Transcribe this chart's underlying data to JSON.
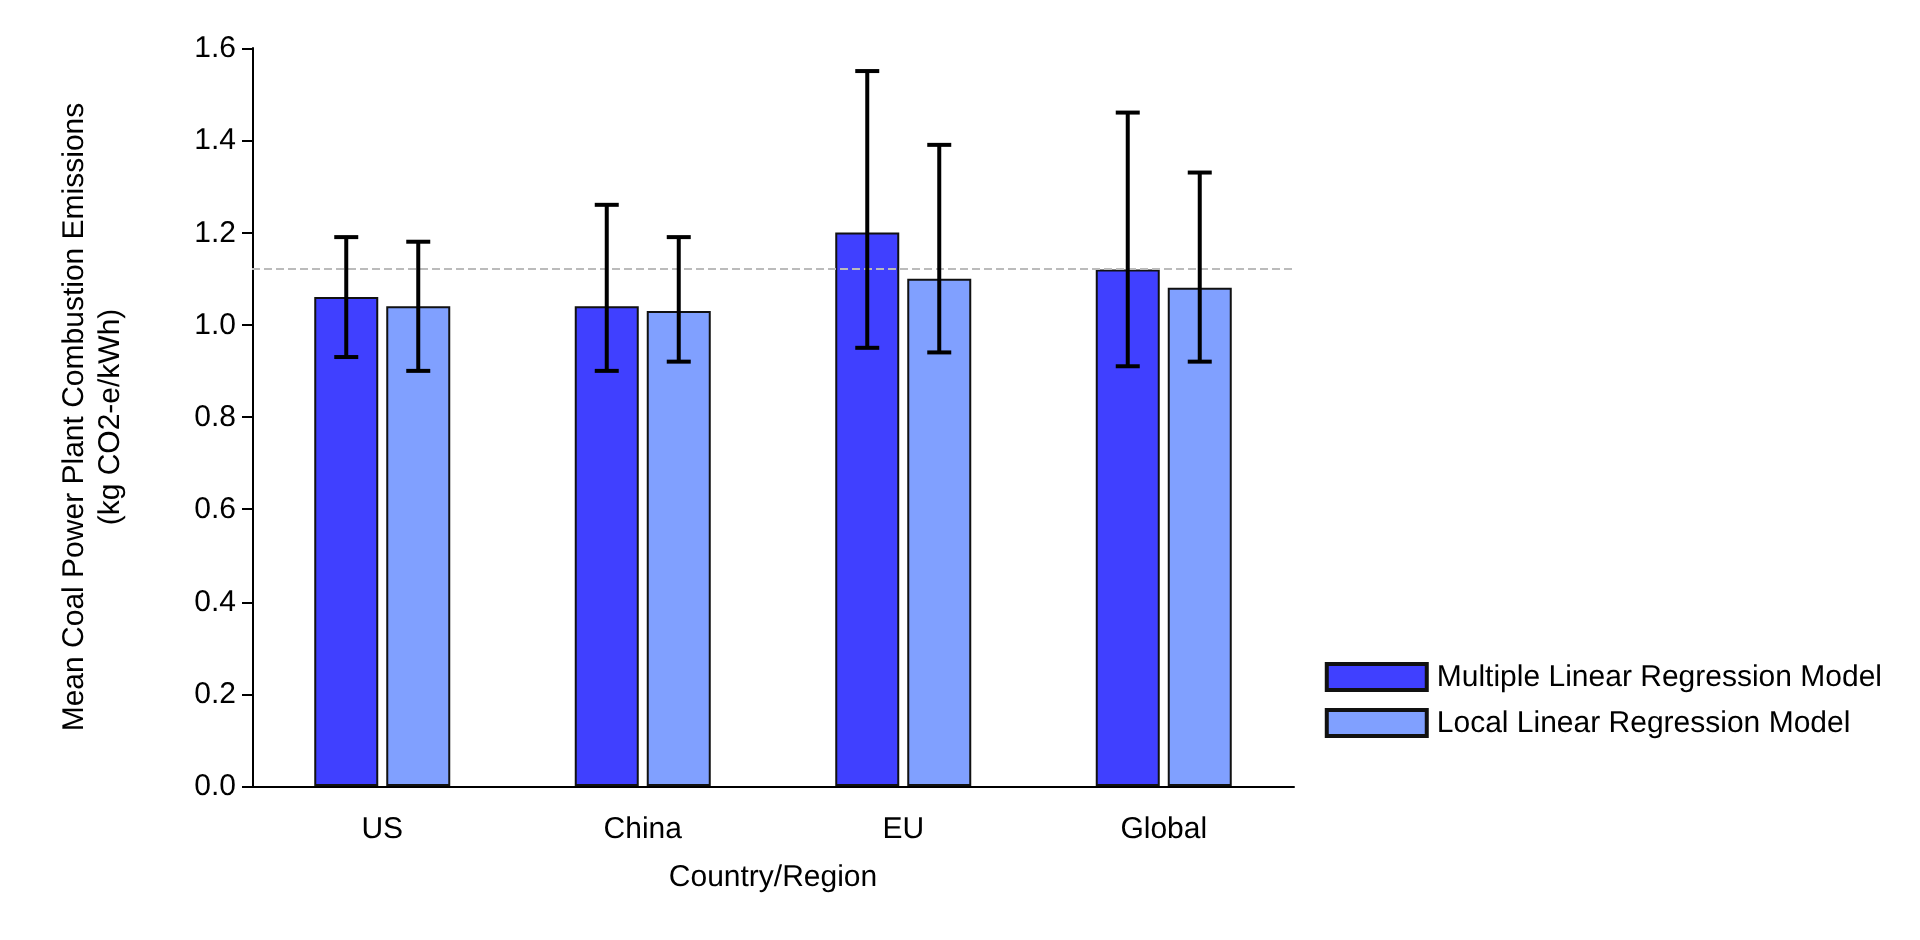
{
  "chart_data": {
    "type": "bar",
    "xlabel": "Country/Region",
    "ylabel": "Mean Coal Power Plant Combustion Emissions\n(kg CO2-e/kWh)",
    "categories": [
      "US",
      "China",
      "EU",
      "Global"
    ],
    "series": [
      {
        "name": "Multiple Linear Regression Model",
        "color": "#4040ff",
        "values": [
          1.06,
          1.04,
          1.2,
          1.12
        ],
        "errors": [
          [
            0.93,
            1.19
          ],
          [
            0.9,
            1.26
          ],
          [
            0.95,
            1.55
          ],
          [
            0.91,
            1.46
          ]
        ]
      },
      {
        "name": "Local Linear Regression Model",
        "color": "#80a0ff",
        "values": [
          1.04,
          1.03,
          1.1,
          1.08
        ],
        "errors": [
          [
            0.9,
            1.18
          ],
          [
            0.92,
            1.19
          ],
          [
            0.94,
            1.39
          ],
          [
            0.92,
            1.33
          ]
        ]
      }
    ],
    "ylim": [
      0,
      1.6
    ],
    "yticks": [
      {
        "value": 0,
        "label": "0.0"
      },
      0.2,
      0.4,
      0.6,
      0.8,
      {
        "value": 1,
        "label": "1.0"
      },
      1.2,
      1.4,
      1.6
    ],
    "ref_lines": [
      {
        "axis": "y",
        "value": 1.12,
        "color": "#bbbbbb",
        "line_style": "dashed"
      }
    ],
    "grid": false,
    "legend": "bottom right"
  }
}
